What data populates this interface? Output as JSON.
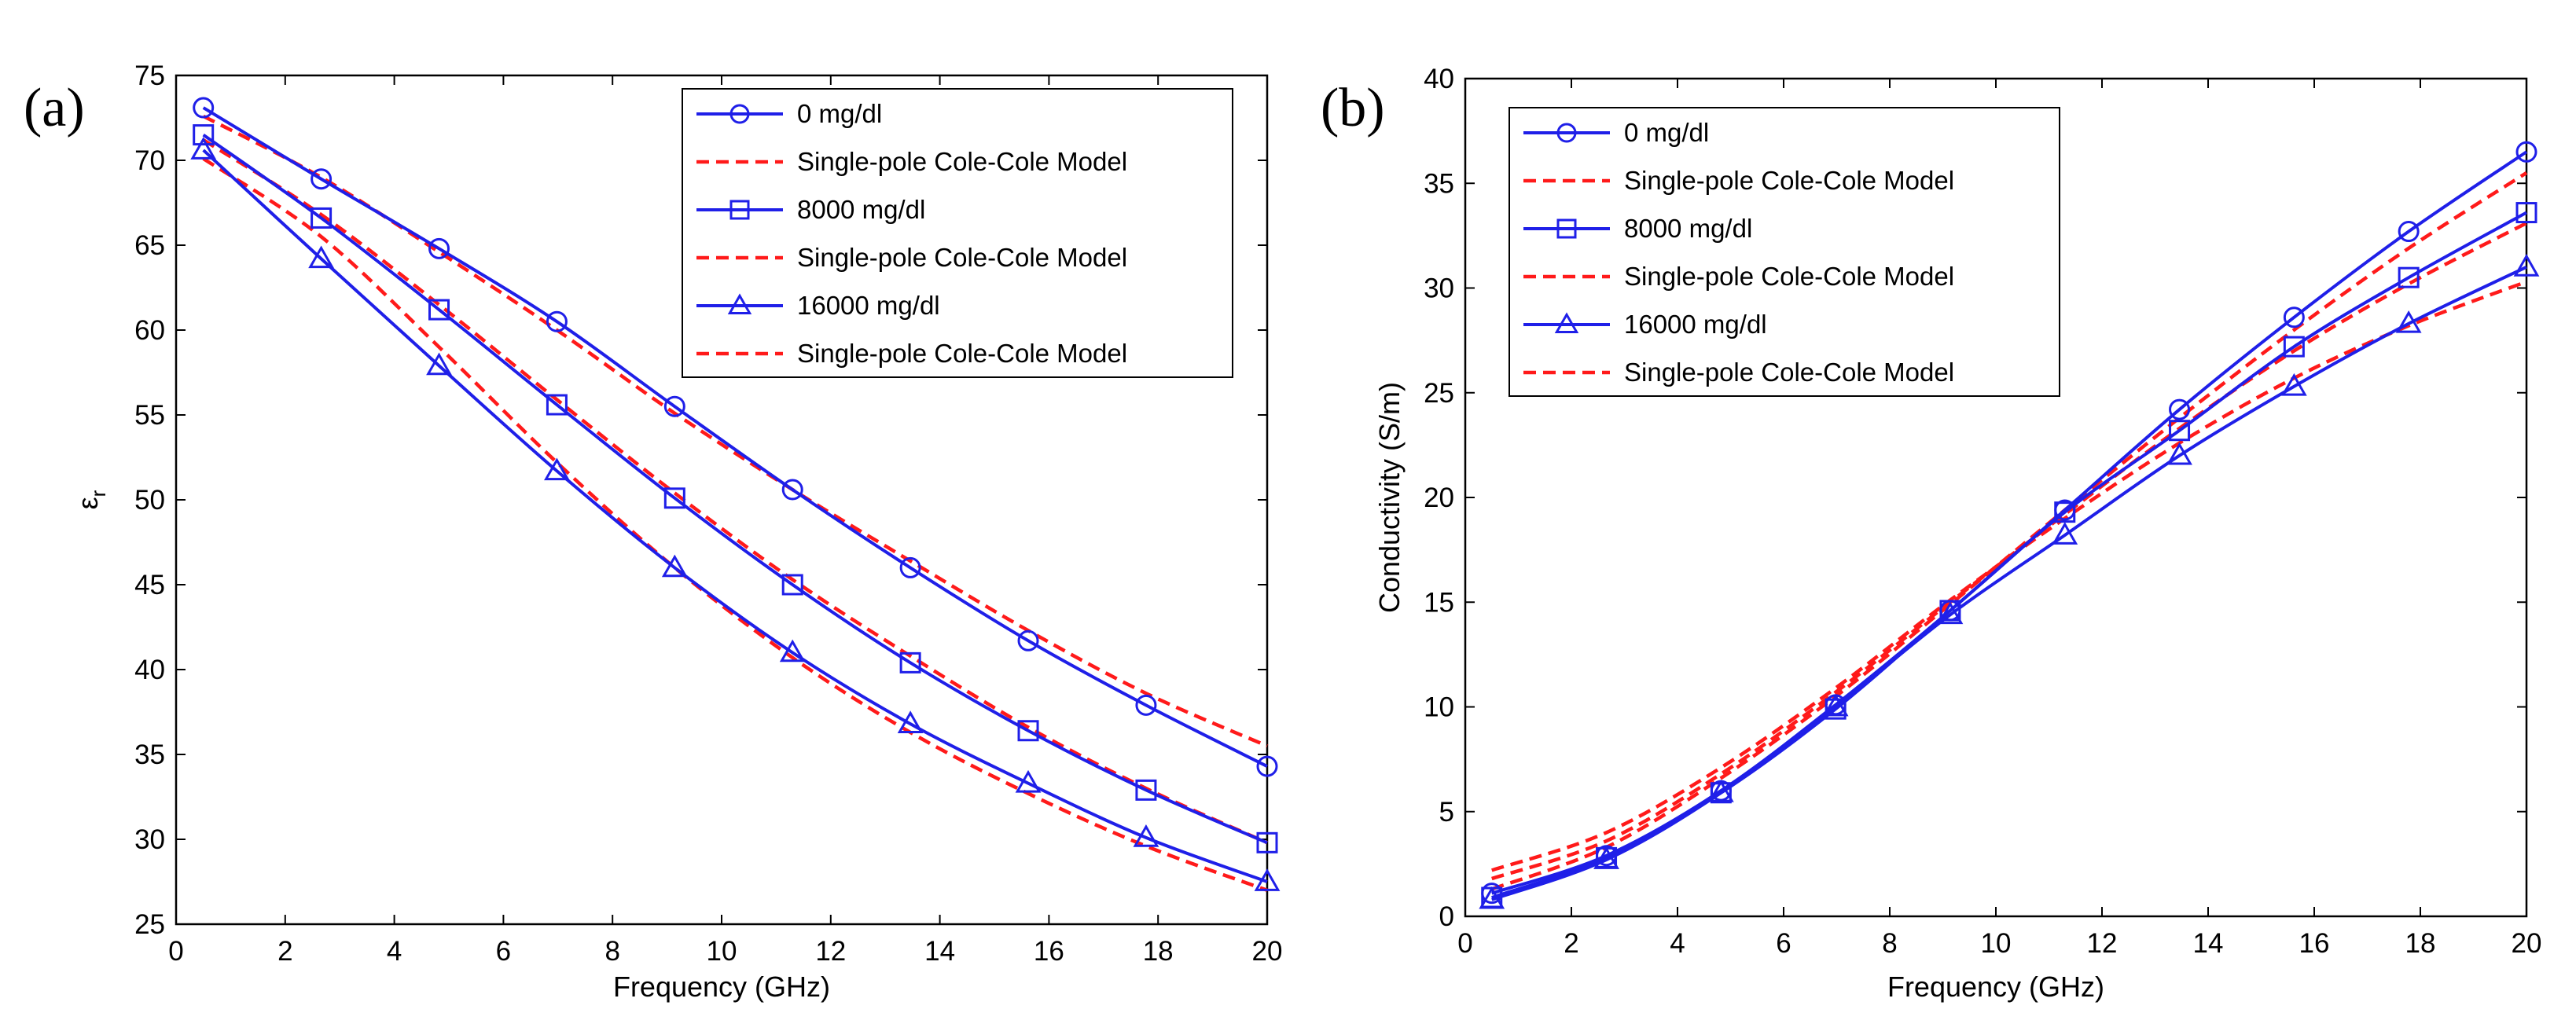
{
  "chart_data": [
    {
      "type": "line",
      "panel_label": "(a)",
      "title": "",
      "xlabel": "Frequency (GHz)",
      "ylabel": "ε",
      "ylabel_sub": "r",
      "xlim": [
        0,
        20
      ],
      "ylim": [
        25,
        75
      ],
      "xticks": [
        "0",
        "2",
        "4",
        "6",
        "8",
        "10",
        "12",
        "14",
        "16",
        "18",
        "20"
      ],
      "yticks": [
        "25",
        "30",
        "35",
        "40",
        "45",
        "50",
        "55",
        "60",
        "65",
        "70",
        "75"
      ],
      "grid": false,
      "legend_position": "top-right",
      "legend": [
        {
          "label": "0 mg/dl",
          "style": "measured",
          "marker": "circle"
        },
        {
          "label": "Single-pole Cole-Cole Model",
          "style": "model"
        },
        {
          "label": "8000 mg/dl",
          "style": "measured",
          "marker": "square"
        },
        {
          "label": "Single-pole Cole-Cole Model",
          "style": "model"
        },
        {
          "label": "16000 mg/dl",
          "style": "measured",
          "marker": "triangle"
        },
        {
          "label": "Single-pole Cole-Cole Model",
          "style": "model"
        }
      ],
      "x": [
        0.5,
        2.66,
        4.82,
        6.98,
        9.14,
        11.3,
        13.46,
        15.62,
        17.78,
        20
      ],
      "series": [
        {
          "name": "0 mg/dl",
          "marker": "circle",
          "values": [
            73.1,
            68.9,
            64.8,
            60.5,
            55.5,
            50.6,
            46.0,
            41.7,
            37.9,
            34.3
          ]
        },
        {
          "name": "8000 mg/dl",
          "marker": "square",
          "values": [
            71.5,
            66.6,
            61.2,
            55.6,
            50.1,
            45.0,
            40.4,
            36.4,
            32.9,
            29.8
          ]
        },
        {
          "name": "16000 mg/dl",
          "marker": "triangle",
          "values": [
            70.6,
            64.2,
            57.9,
            51.7,
            46.0,
            41.0,
            36.8,
            33.3,
            30.1,
            27.5
          ]
        }
      ],
      "model_series": [
        {
          "name": "Single-pole Cole-Cole Model",
          "values": [
            72.6,
            69.0,
            64.6,
            60.0,
            55.1,
            50.6,
            46.4,
            42.3,
            38.6,
            35.5
          ]
        },
        {
          "name": "Single-pole Cole-Cole Model",
          "values": [
            71.2,
            66.8,
            61.5,
            55.9,
            50.4,
            45.3,
            40.8,
            36.6,
            33.0,
            29.8
          ]
        },
        {
          "name": "Single-pole Cole-Cole Model",
          "values": [
            70.1,
            65.5,
            59.0,
            52.2,
            46.0,
            40.7,
            36.3,
            32.7,
            29.6,
            27.0
          ]
        }
      ]
    },
    {
      "type": "line",
      "panel_label": "(b)",
      "title": "",
      "xlabel": "Frequency (GHz)",
      "ylabel": "Conductivity (S/m)",
      "xlim": [
        0,
        20
      ],
      "ylim": [
        0,
        40
      ],
      "xticks": [
        "0",
        "2",
        "4",
        "6",
        "8",
        "10",
        "12",
        "14",
        "16",
        "18",
        "20"
      ],
      "yticks": [
        "0",
        "5",
        "10",
        "15",
        "20",
        "25",
        "30",
        "35",
        "40"
      ],
      "grid": false,
      "legend_position": "top-left",
      "legend": [
        {
          "label": "0 mg/dl",
          "style": "measured",
          "marker": "circle"
        },
        {
          "label": "Single-pole Cole-Cole Model",
          "style": "model"
        },
        {
          "label": "8000 mg/dl",
          "style": "measured",
          "marker": "square"
        },
        {
          "label": "Single-pole Cole-Cole Model",
          "style": "model"
        },
        {
          "label": "16000 mg/dl",
          "style": "measured",
          "marker": "triangle"
        },
        {
          "label": "Single-pole Cole-Cole Model",
          "style": "model"
        }
      ],
      "x": [
        0.5,
        2.66,
        4.82,
        6.98,
        9.14,
        11.3,
        13.46,
        15.62,
        17.78,
        20
      ],
      "series": [
        {
          "name": "0 mg/dl",
          "marker": "circle",
          "values": [
            1.1,
            2.9,
            6.0,
            10.1,
            14.6,
            19.4,
            24.2,
            28.6,
            32.7,
            36.5
          ]
        },
        {
          "name": "8000 mg/dl",
          "marker": "square",
          "values": [
            0.9,
            2.8,
            5.9,
            9.9,
            14.6,
            19.3,
            23.2,
            27.2,
            30.5,
            33.6
          ]
        },
        {
          "name": "16000 mg/dl",
          "marker": "triangle",
          "values": [
            0.8,
            2.7,
            5.9,
            10.0,
            14.4,
            18.2,
            22.0,
            25.3,
            28.3,
            31.0
          ]
        }
      ],
      "model_series": [
        {
          "name": "Single-pole Cole-Cole Model",
          "values": [
            1.3,
            3.3,
            6.6,
            10.5,
            14.9,
            19.4,
            23.8,
            28.0,
            31.9,
            35.5
          ]
        },
        {
          "name": "Single-pole Cole-Cole Model",
          "values": [
            1.8,
            3.6,
            6.8,
            10.7,
            15.0,
            19.2,
            23.3,
            27.0,
            30.2,
            33.1
          ]
        },
        {
          "name": "Single-pole Cole-Cole Model",
          "values": [
            2.2,
            4.0,
            7.1,
            10.9,
            15.1,
            19.0,
            22.6,
            25.7,
            28.2,
            30.3
          ]
        }
      ]
    }
  ]
}
